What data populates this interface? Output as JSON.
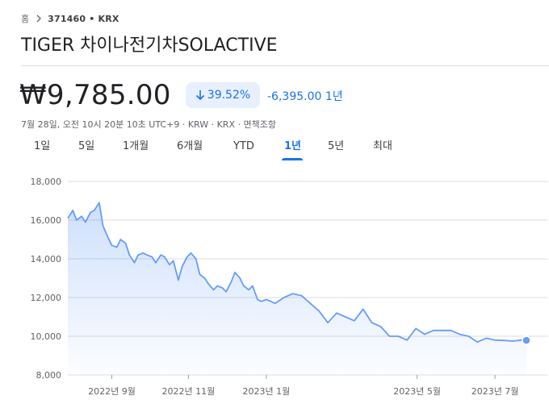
{
  "breadcrumb": {
    "home": "홈",
    "ticker": "371460 • KRX"
  },
  "title": "TIGER 차이나전기차SOLACTIVE",
  "quote": {
    "price": "₩9,785.00",
    "pct_change": "39.52%",
    "abs_change": "-6,395.00",
    "period": "1년",
    "meta": "7월 28일, 오전 10시 20분 10초 UTC+9 · KRW · KRX · 면책조항"
  },
  "tabs": [
    {
      "label": "1일"
    },
    {
      "label": "5일"
    },
    {
      "label": "1개월"
    },
    {
      "label": "6개월"
    },
    {
      "label": "YTD"
    },
    {
      "label": "1년"
    },
    {
      "label": "5년"
    },
    {
      "label": "최대"
    }
  ],
  "active_tab": "1년",
  "colors": {
    "accent": "#1a73e8",
    "line": "#669df6",
    "badge_bg": "#e8f0fe",
    "grid": "#dadce0"
  },
  "icons": {
    "breadcrumb_separator": "chevron-right-icon",
    "change_direction": "arrow-down-icon"
  },
  "chart_data": {
    "type": "area",
    "ylim": [
      8000,
      18000
    ],
    "y_ticks": [
      18000,
      16000,
      14000,
      12000,
      10000,
      8000
    ],
    "y_tick_labels": [
      "18,000",
      "16,000",
      "14,000",
      "12,000",
      "10,000",
      "8,000"
    ],
    "x_range": [
      "2022-07-28",
      "2023-07-28"
    ],
    "x_ticks": [
      {
        "date": "2022-09-01",
        "label": "2022년 9월"
      },
      {
        "date": "2022-11-01",
        "label": "2022년 11월"
      },
      {
        "date": "2023-01-02",
        "label": "2023년 1월"
      },
      {
        "date": "2023-05-02",
        "label": "2023년 5월"
      },
      {
        "date": "2023-07-03",
        "label": "2023년 7월"
      }
    ],
    "series": [
      {
        "x": [
          "2022-07-28",
          "2022-08-01",
          "2022-08-04",
          "2022-08-08",
          "2022-08-11",
          "2022-08-15",
          "2022-08-18",
          "2022-08-22",
          "2022-08-25",
          "2022-08-29",
          "2022-09-01",
          "2022-09-05",
          "2022-09-08",
          "2022-09-12",
          "2022-09-15",
          "2022-09-19",
          "2022-09-22",
          "2022-09-26",
          "2022-09-29",
          "2022-10-03",
          "2022-10-06",
          "2022-10-10",
          "2022-10-13",
          "2022-10-17",
          "2022-10-20",
          "2022-10-24",
          "2022-10-27",
          "2022-10-31",
          "2022-11-03",
          "2022-11-07",
          "2022-11-10",
          "2022-11-14",
          "2022-11-17",
          "2022-11-21",
          "2022-11-24",
          "2022-11-28",
          "2022-12-01",
          "2022-12-05",
          "2022-12-08",
          "2022-12-12",
          "2022-12-15",
          "2022-12-19",
          "2022-12-22",
          "2022-12-26",
          "2022-12-29",
          "2023-01-02",
          "2023-01-09",
          "2023-01-16",
          "2023-01-23",
          "2023-01-30",
          "2023-02-06",
          "2023-02-13",
          "2023-02-20",
          "2023-02-27",
          "2023-03-06",
          "2023-03-13",
          "2023-03-20",
          "2023-03-27",
          "2023-04-03",
          "2023-04-10",
          "2023-04-17",
          "2023-04-24",
          "2023-05-01",
          "2023-05-08",
          "2023-05-15",
          "2023-05-22",
          "2023-05-29",
          "2023-06-05",
          "2023-06-12",
          "2023-06-19",
          "2023-06-26",
          "2023-07-03",
          "2023-07-10",
          "2023-07-17",
          "2023-07-24",
          "2023-07-28"
        ],
        "y": [
          16100,
          16500,
          16000,
          16200,
          15900,
          16400,
          16500,
          16900,
          15700,
          15100,
          14700,
          14600,
          15000,
          14800,
          14200,
          13800,
          14200,
          14300,
          14200,
          14100,
          13800,
          14200,
          14100,
          13700,
          13900,
          12900,
          13600,
          14100,
          14300,
          14000,
          13200,
          13000,
          12700,
          12400,
          12600,
          12500,
          12300,
          12800,
          13300,
          13000,
          12600,
          12400,
          12600,
          11900,
          11800,
          11900,
          11700,
          12000,
          12200,
          12100,
          11700,
          11300,
          10700,
          11200,
          11000,
          10800,
          11400,
          10700,
          10500,
          10000,
          10000,
          9800,
          10400,
          10100,
          10300,
          10300,
          10300,
          10100,
          10000,
          9700,
          9900,
          9800,
          9785,
          9750,
          9800,
          9785
        ]
      }
    ]
  }
}
